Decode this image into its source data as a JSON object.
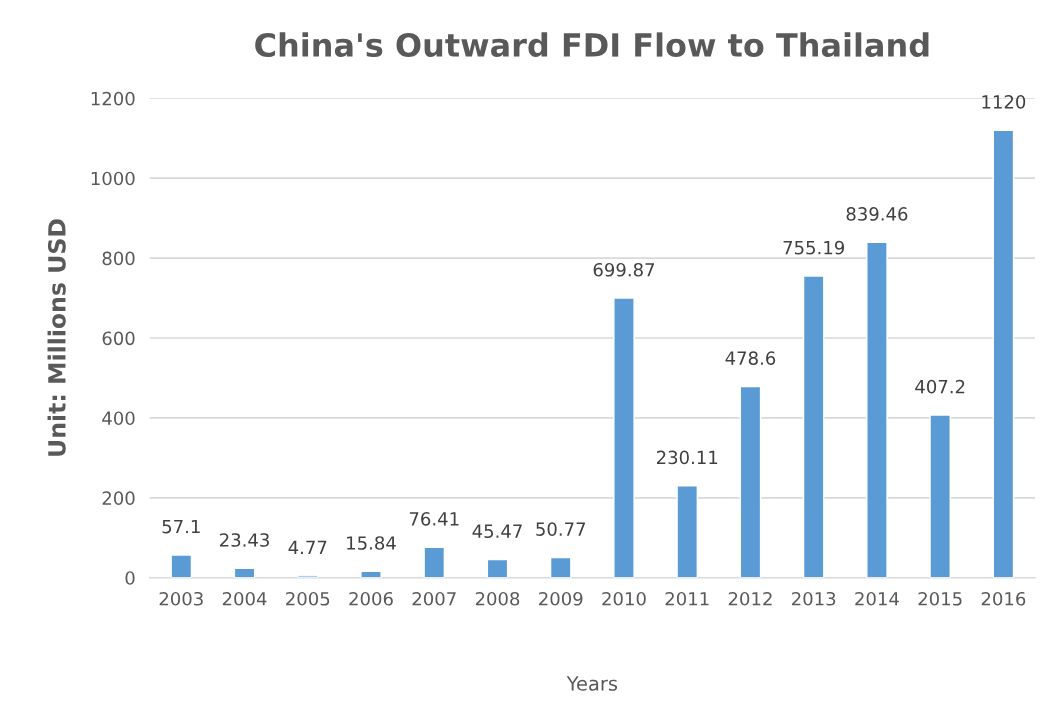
{
  "chart_data": {
    "type": "bar",
    "title": "China's Outward FDI Flow to Thailand",
    "xlabel": "Years",
    "ylabel": "Unit: Millions USD",
    "categories": [
      "2003",
      "2004",
      "2005",
      "2006",
      "2007",
      "2008",
      "2009",
      "2010",
      "2011",
      "2012",
      "2013",
      "2014",
      "2015",
      "2016"
    ],
    "values": [
      57.1,
      23.43,
      4.77,
      15.84,
      76.41,
      45.47,
      50.77,
      699.87,
      230.11,
      478.6,
      755.19,
      839.46,
      407.2,
      1120
    ],
    "color": "#5b9bd5",
    "ylim": [
      0,
      1200
    ],
    "yticks": [
      0,
      200,
      400,
      600,
      800,
      1000,
      1200
    ],
    "grid": "y",
    "data_labels": true,
    "legend": false
  }
}
